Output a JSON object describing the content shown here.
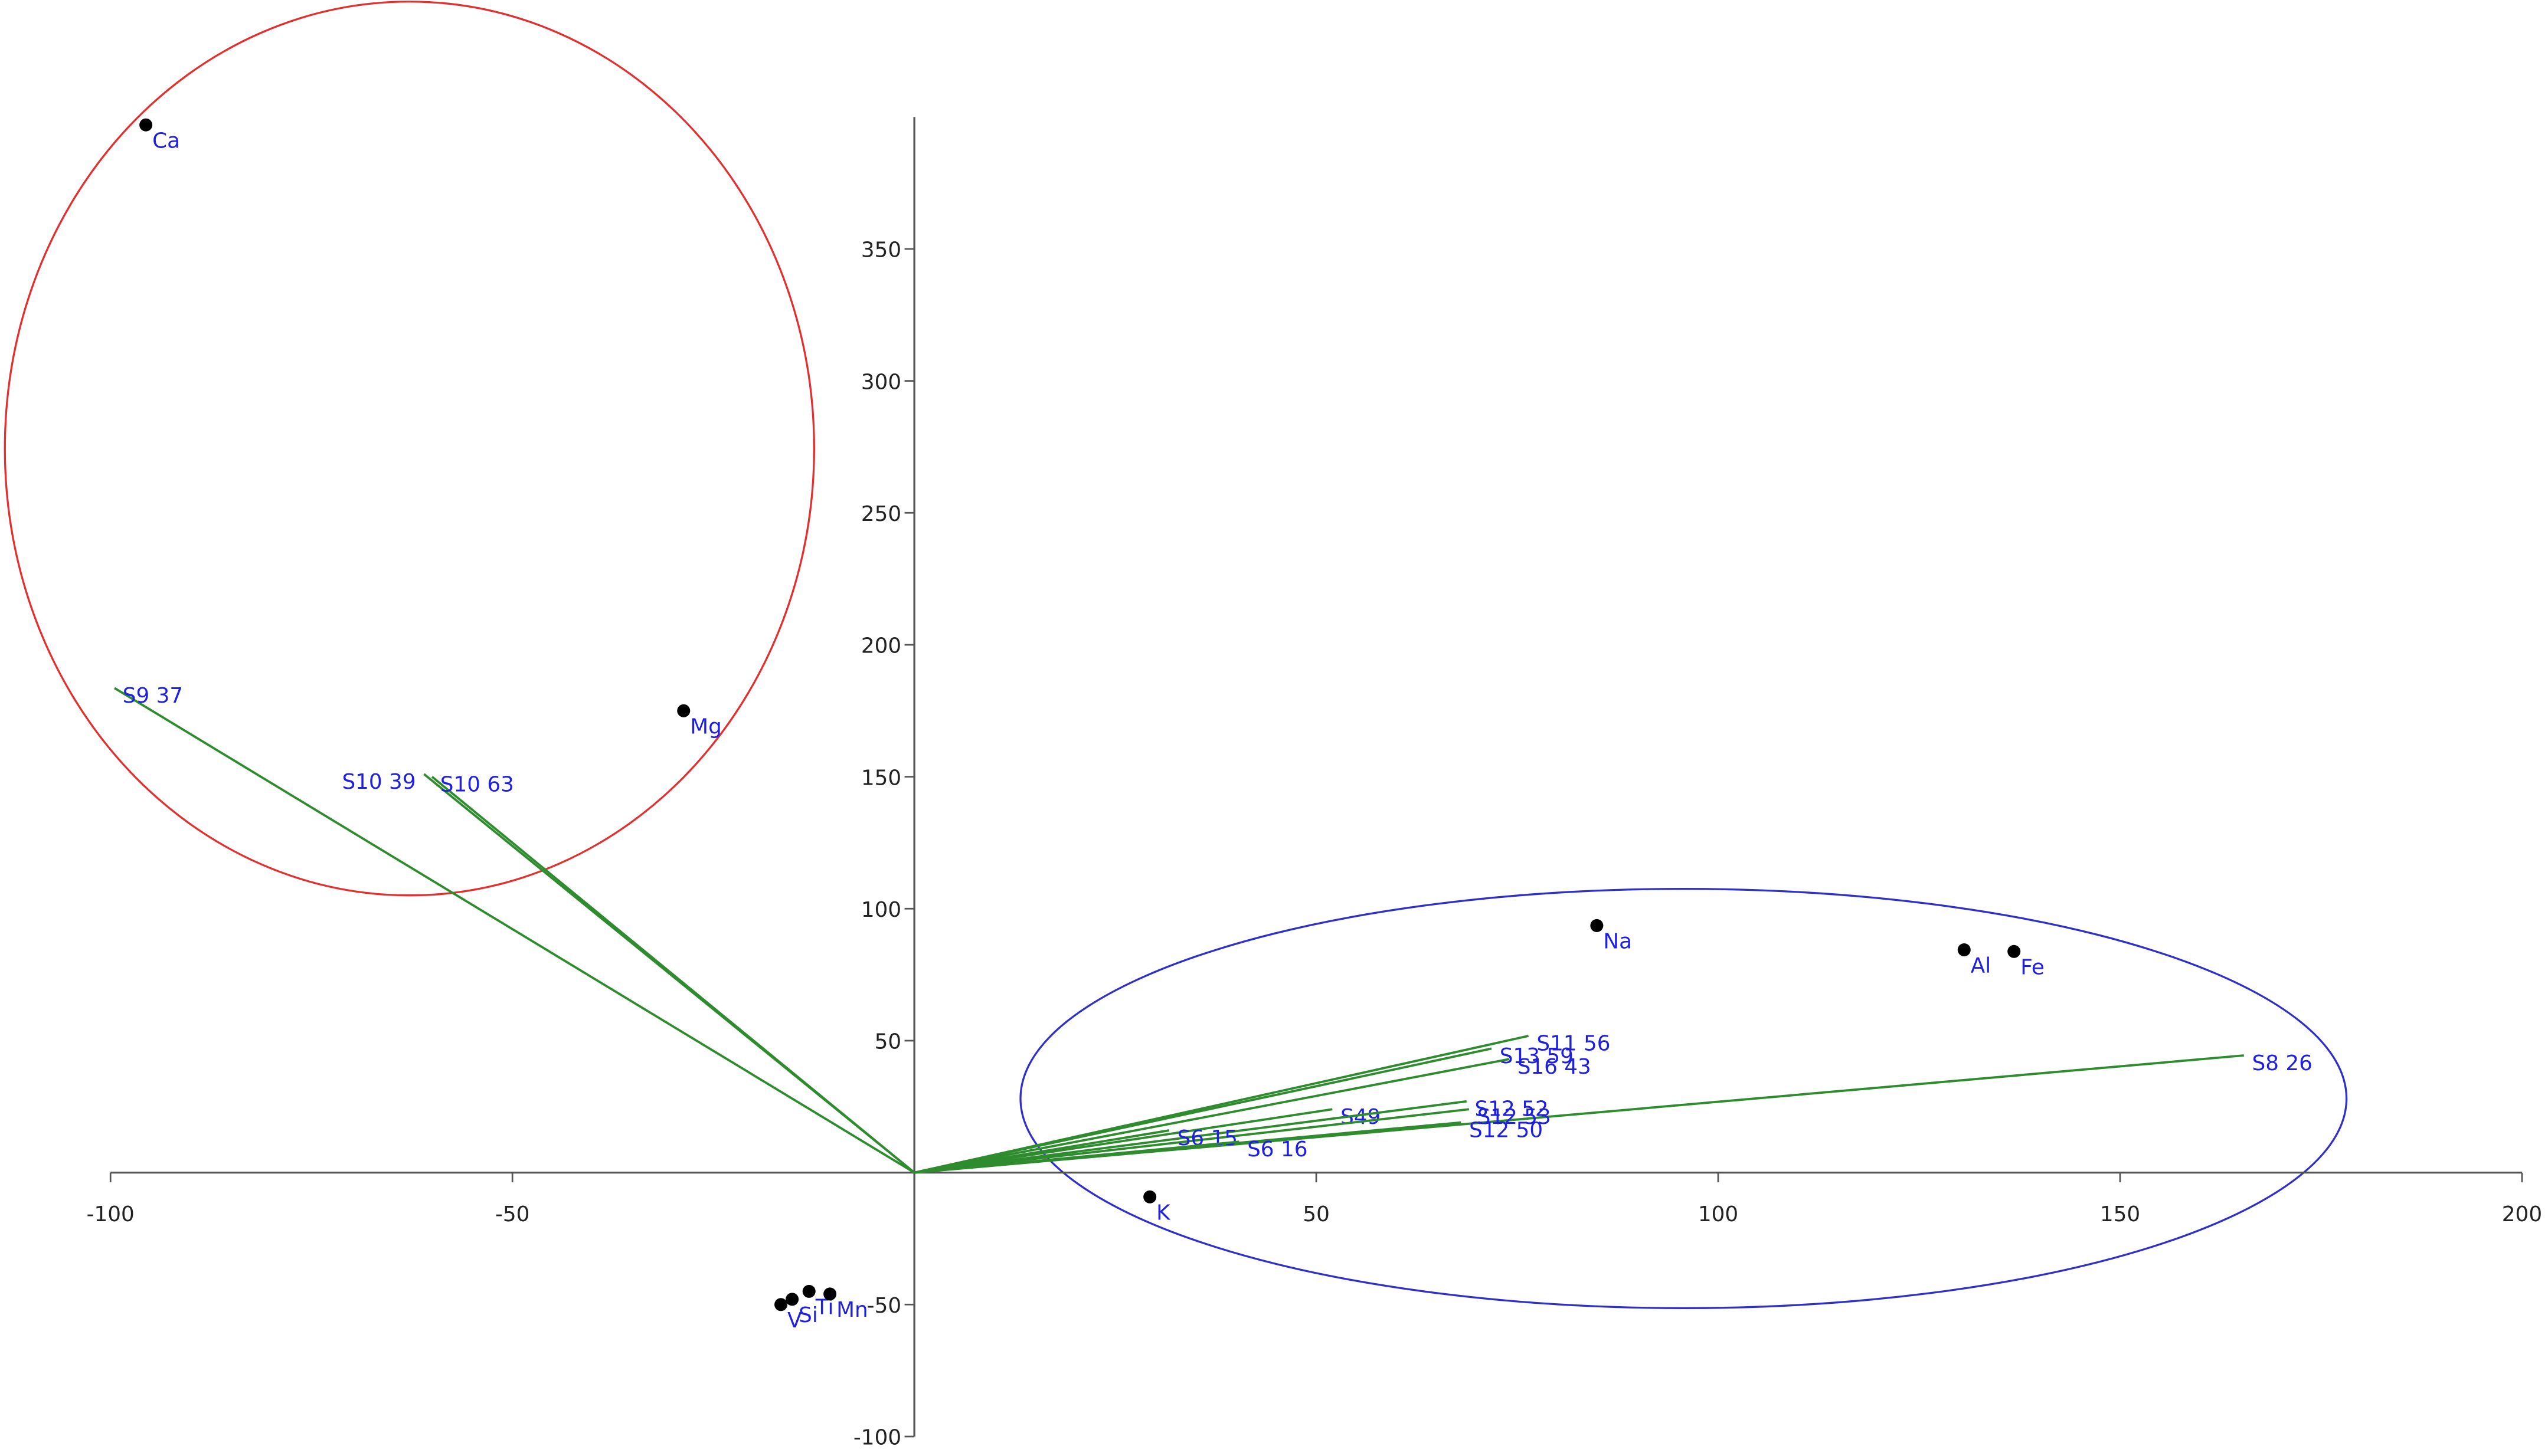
{
  "chart_data": {
    "type": "biplot",
    "xlim": [
      -100,
      200
    ],
    "xticks": [
      -100,
      -50,
      50,
      100,
      150,
      200
    ],
    "ylim": [
      -100,
      400
    ],
    "yticks": [
      -100,
      -50,
      50,
      100,
      150,
      200,
      250,
      300,
      350
    ],
    "point_color": "#000000",
    "label_color": "#1f1fe0",
    "vector_color": "#2e8b2e",
    "axis_color": "#555555",
    "points": [
      {
        "label": "Ca",
        "x": -95.6,
        "y": 397
      },
      {
        "label": "Mg",
        "x": -28.7,
        "y": 175
      },
      {
        "label": "Na",
        "x": 84.9,
        "y": 93.6
      },
      {
        "label": "Al",
        "x": 130.6,
        "y": 84.4
      },
      {
        "label": "Fe",
        "x": 136.8,
        "y": 83.8
      },
      {
        "label": "K",
        "x": 29.3,
        "y": -9.2
      },
      {
        "label": "Ti",
        "x": -13.1,
        "y": -45
      },
      {
        "label": "Mn",
        "x": -10.5,
        "y": -46
      },
      {
        "label": "Si",
        "x": -15.2,
        "y": -48
      },
      {
        "label": "V",
        "x": -16.6,
        "y": -50
      }
    ],
    "vectors": [
      {
        "label": "S9 37",
        "x": -99.5,
        "y": 183.6
      },
      {
        "label": "S10 39",
        "x": -61,
        "y": 151
      },
      {
        "label": "S10 63",
        "x": -60,
        "y": 150
      },
      {
        "label": "S11 56",
        "x": 76.4,
        "y": 51.8
      },
      {
        "label": "S13 59",
        "x": 71.8,
        "y": 47
      },
      {
        "label": "S16 43",
        "x": 74,
        "y": 43
      },
      {
        "label": "S8 26",
        "x": 165.4,
        "y": 44.4
      },
      {
        "label": "S49",
        "x": 52,
        "y": 24
      },
      {
        "label": "S12 52",
        "x": 68.7,
        "y": 27
      },
      {
        "label": "S12 53",
        "x": 69,
        "y": 24
      },
      {
        "label": "S12 50",
        "x": 68,
        "y": 19
      },
      {
        "label": "S6 15",
        "x": 31.7,
        "y": 16
      },
      {
        "label": "S6 16",
        "x": 40.4,
        "y": 11.7
      }
    ]
  }
}
